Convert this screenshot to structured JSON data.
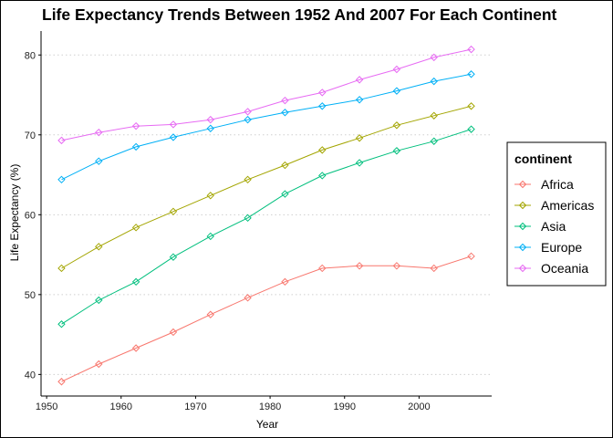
{
  "chart_data": {
    "type": "line",
    "title": "Life Expectancy Trends Between 1952 And 2007 For Each Continent",
    "xlabel": "Year",
    "ylabel": "Life Expectancy (%)",
    "xlim": [
      1949.25,
      2009.75
    ],
    "ylim": [
      37.3,
      83.0
    ],
    "xticks": [
      1950,
      1960,
      1970,
      1980,
      1990,
      2000
    ],
    "yticks": [
      40,
      50,
      60,
      70,
      80
    ],
    "grid": "horizontal dotted",
    "legend": {
      "title": "continent",
      "position": "right"
    },
    "x": [
      1952,
      1957,
      1962,
      1967,
      1972,
      1977,
      1982,
      1987,
      1992,
      1997,
      2002,
      2007
    ],
    "series": [
      {
        "name": "Africa",
        "color": "#F8766D",
        "values": [
          39.1,
          41.3,
          43.3,
          45.3,
          47.5,
          49.6,
          51.6,
          53.3,
          53.6,
          53.6,
          53.3,
          54.8
        ]
      },
      {
        "name": "Americas",
        "color": "#A3A500",
        "values": [
          53.3,
          56.0,
          58.4,
          60.4,
          62.4,
          64.4,
          66.2,
          68.1,
          69.6,
          71.2,
          72.4,
          73.6
        ]
      },
      {
        "name": "Asia",
        "color": "#00BF7D",
        "values": [
          46.3,
          49.3,
          51.6,
          54.7,
          57.3,
          59.6,
          62.6,
          64.9,
          66.5,
          68.0,
          69.2,
          70.7
        ]
      },
      {
        "name": "Europe",
        "color": "#00B0F6",
        "values": [
          64.4,
          66.7,
          68.5,
          69.7,
          70.8,
          71.9,
          72.8,
          73.6,
          74.4,
          75.5,
          76.7,
          77.6
        ]
      },
      {
        "name": "Oceania",
        "color": "#E76BF3",
        "values": [
          69.3,
          70.3,
          71.1,
          71.3,
          71.9,
          72.9,
          74.3,
          75.3,
          76.9,
          78.2,
          79.7,
          80.7
        ]
      }
    ]
  }
}
